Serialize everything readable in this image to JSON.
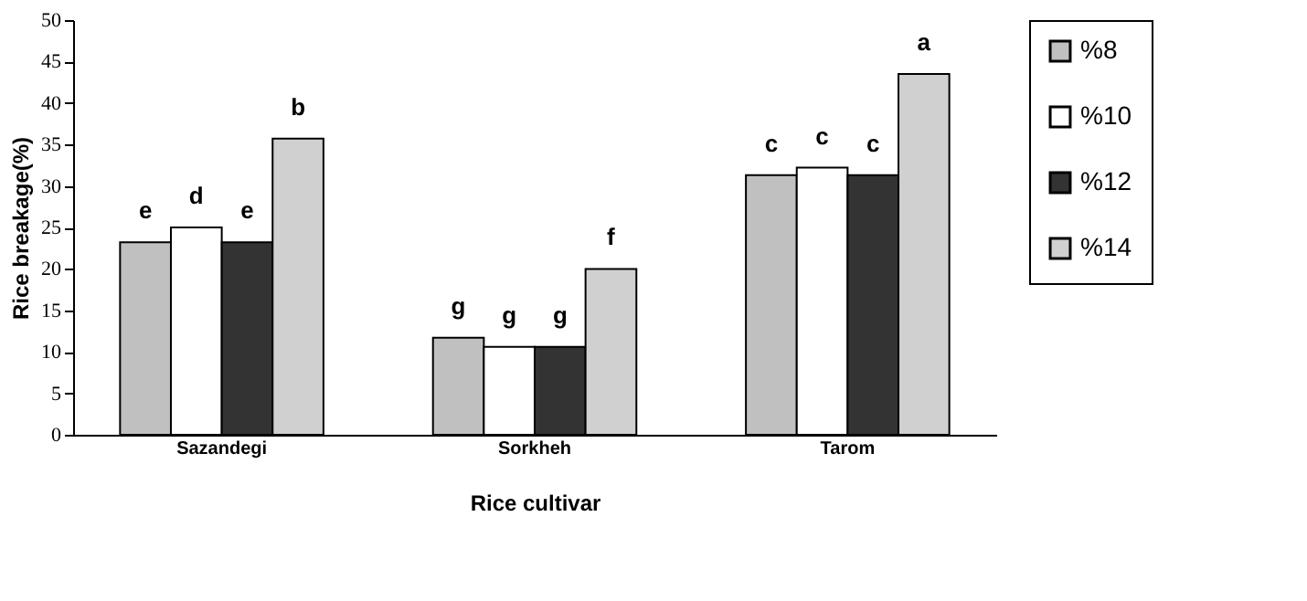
{
  "chart_data": {
    "type": "bar",
    "xlabel": "Rice cultivar",
    "ylabel": "Rice breakage(%)",
    "categories": [
      "Sazandegi",
      "Sorkheh",
      "Tarom"
    ],
    "series": [
      {
        "name": "%8",
        "color": "#c0c0c0",
        "values": [
          23.2,
          11.7,
          31.3
        ],
        "value_labels": [
          "e",
          "g",
          "c"
        ]
      },
      {
        "name": "%10",
        "color": "#ffffff",
        "values": [
          25,
          10.6,
          32.2
        ],
        "value_labels": [
          "d",
          "g",
          "c"
        ]
      },
      {
        "name": "%12",
        "color": "#333333",
        "values": [
          23.2,
          10.6,
          31.3
        ],
        "value_labels": [
          "e",
          "g",
          "c"
        ]
      },
      {
        "name": "%14",
        "color": "#d0d0d0",
        "values": [
          35.7,
          20,
          43.5
        ],
        "value_labels": [
          "b",
          "f",
          "a"
        ]
      }
    ],
    "ylim": [
      0,
      50
    ],
    "yticks": [
      0,
      5,
      10,
      15,
      20,
      25,
      30,
      35,
      40,
      45,
      50
    ],
    "grid": false,
    "legend": "right"
  }
}
